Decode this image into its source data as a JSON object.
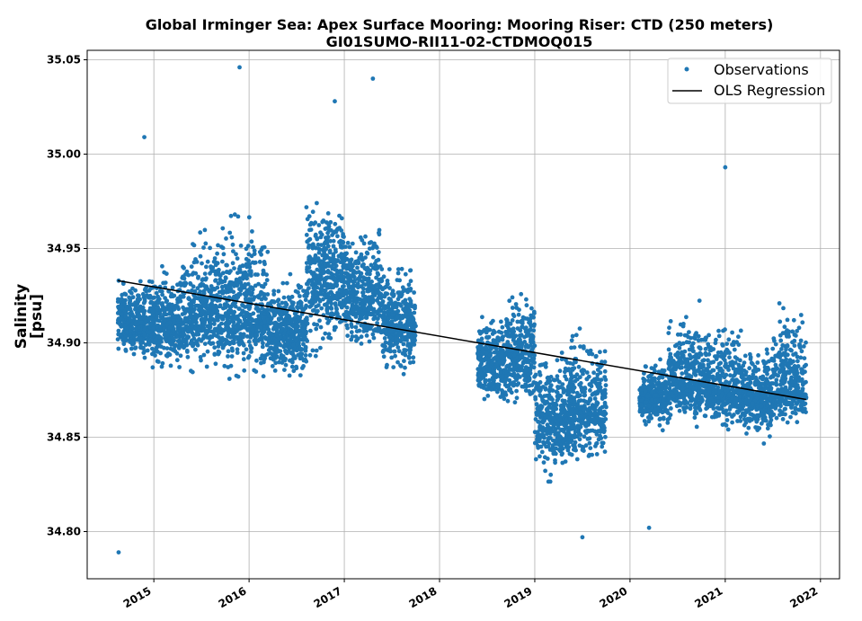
{
  "chart_data": {
    "type": "scatter",
    "title": "Global Irminger Sea: Apex Surface Mooring: Mooring Riser: CTD (250 meters)",
    "subtitle": "GI01SUMO-RII11-02-CTDMOQ015",
    "xlabel": "",
    "ylabel": "Salinity",
    "ylabel_unit": "[psu]",
    "ylim": [
      34.775,
      35.055
    ],
    "xlim": [
      2014.3,
      2022.2
    ],
    "x_ticks": [
      2015,
      2016,
      2017,
      2018,
      2019,
      2020,
      2021,
      2022
    ],
    "x_tick_labels": [
      "2015",
      "2016",
      "2017",
      "2018",
      "2019",
      "2020",
      "2021",
      "2022"
    ],
    "y_ticks": [
      34.8,
      34.85,
      34.9,
      34.95,
      35.0,
      35.05
    ],
    "y_tick_labels": [
      "34.80",
      "34.85",
      "34.90",
      "34.95",
      "35.00",
      "35.05"
    ],
    "grid": true,
    "legend": {
      "placement": "top-right",
      "entries": [
        "Observations",
        "OLS Regression"
      ]
    },
    "colors": {
      "observations": "#1f77b4",
      "regression": "#000000",
      "grid": "#b0b0b0"
    },
    "series": [
      {
        "name": "Observations",
        "kind": "scatter",
        "segments": [
          {
            "x_range": [
              2014.62,
              2014.9
            ],
            "median": 34.91,
            "spread": [
              34.885,
              34.945
            ]
          },
          {
            "x_range": [
              2014.9,
              2015.3
            ],
            "median": 34.91,
            "spread": [
              34.88,
              34.95
            ]
          },
          {
            "x_range": [
              2015.3,
              2015.7
            ],
            "median": 34.915,
            "spread": [
              34.875,
              34.97
            ]
          },
          {
            "x_range": [
              2015.7,
              2016.2
            ],
            "median": 34.915,
            "spread": [
              34.875,
              34.98
            ]
          },
          {
            "x_range": [
              2016.2,
              2016.6
            ],
            "median": 34.905,
            "spread": [
              34.875,
              34.945
            ]
          },
          {
            "x_range": [
              2016.6,
              2017.0
            ],
            "median": 34.935,
            "spread": [
              34.885,
              34.99
            ]
          },
          {
            "x_range": [
              2017.0,
              2017.4
            ],
            "median": 34.925,
            "spread": [
              34.89,
              34.97
            ]
          },
          {
            "x_range": [
              2017.4,
              2017.75
            ],
            "median": 34.91,
            "spread": [
              34.875,
              34.955
            ]
          },
          {
            "x_range": [
              2018.4,
              2018.7
            ],
            "median": 34.89,
            "spread": [
              34.86,
              34.92
            ]
          },
          {
            "x_range": [
              2018.7,
              2019.0
            ],
            "median": 34.895,
            "spread": [
              34.855,
              34.935
            ]
          },
          {
            "x_range": [
              2019.0,
              2019.35
            ],
            "median": 34.86,
            "spread": [
              34.82,
              34.905
            ]
          },
          {
            "x_range": [
              2019.35,
              2019.75
            ],
            "median": 34.865,
            "spread": [
              34.825,
              34.915
            ]
          },
          {
            "x_range": [
              2020.1,
              2020.4
            ],
            "median": 34.87,
            "spread": [
              34.85,
              34.895
            ]
          },
          {
            "x_range": [
              2020.4,
              2020.8
            ],
            "median": 34.88,
            "spread": [
              34.85,
              34.93
            ]
          },
          {
            "x_range": [
              2020.8,
              2021.2
            ],
            "median": 34.875,
            "spread": [
              34.85,
              34.925
            ]
          },
          {
            "x_range": [
              2021.2,
              2021.5
            ],
            "median": 34.87,
            "spread": [
              34.845,
              34.91
            ]
          },
          {
            "x_range": [
              2021.5,
              2021.85
            ],
            "median": 34.875,
            "spread": [
              34.85,
              34.935
            ]
          }
        ],
        "outliers": [
          {
            "x": 2014.63,
            "y": 34.789
          },
          {
            "x": 2014.9,
            "y": 35.009
          },
          {
            "x": 2015.9,
            "y": 35.046
          },
          {
            "x": 2016.9,
            "y": 35.028
          },
          {
            "x": 2017.3,
            "y": 35.04
          },
          {
            "x": 2019.5,
            "y": 34.797
          },
          {
            "x": 2020.2,
            "y": 34.802
          },
          {
            "x": 2021.0,
            "y": 34.993
          }
        ]
      },
      {
        "name": "OLS Regression",
        "kind": "line",
        "x": [
          2014.62,
          2021.85
        ],
        "y": [
          34.933,
          34.87
        ]
      }
    ]
  }
}
